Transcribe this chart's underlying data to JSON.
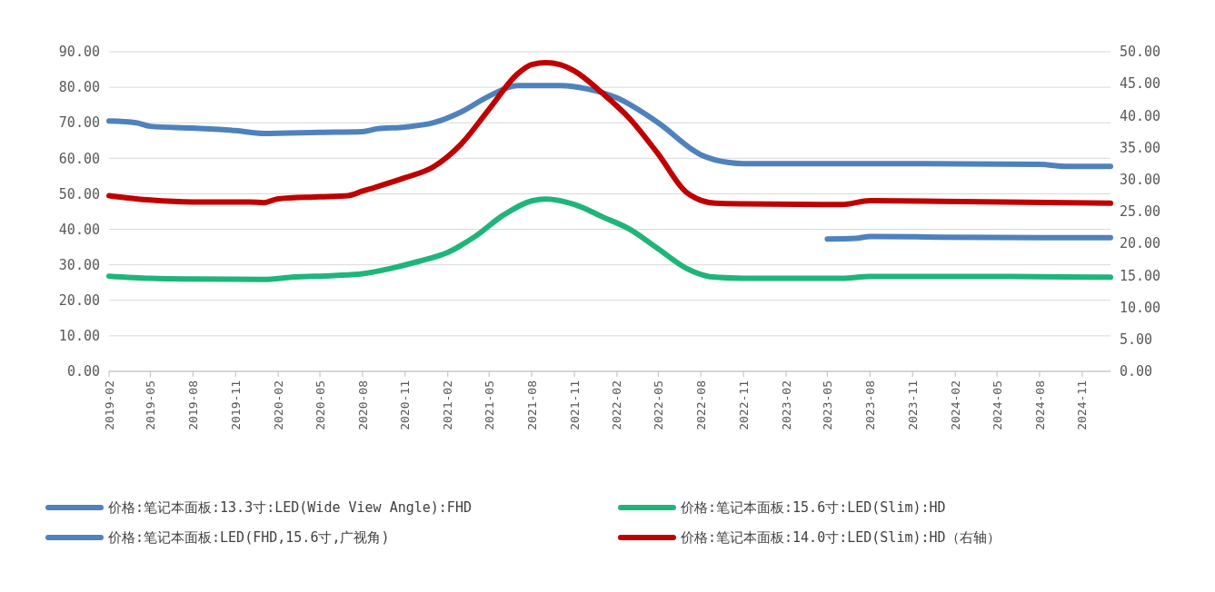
{
  "chart_data": {
    "type": "line",
    "xlim": [
      "2019-02",
      "2025-01"
    ],
    "xticks": [
      "2019-02",
      "2019-05",
      "2019-08",
      "2019-11",
      "2020-02",
      "2020-05",
      "2020-08",
      "2020-11",
      "2021-02",
      "2021-05",
      "2021-08",
      "2021-11",
      "2022-02",
      "2022-05",
      "2022-08",
      "2022-11",
      "2023-02",
      "2023-05",
      "2023-08",
      "2023-11",
      "2024-02",
      "2024-05",
      "2024-08",
      "2024-11"
    ],
    "ylim": [
      0,
      90
    ],
    "yticks": [
      {
        "value": 0,
        "label": "0.00"
      },
      {
        "value": 10,
        "label": "10.00"
      },
      {
        "value": 20,
        "label": "20.00"
      },
      {
        "value": 30,
        "label": "30.00"
      },
      {
        "value": 40,
        "label": "40.00"
      },
      {
        "value": 50,
        "label": "50.00"
      },
      {
        "value": 60,
        "label": "60.00"
      },
      {
        "value": 70,
        "label": "70.00"
      },
      {
        "value": 80,
        "label": "80.00"
      },
      {
        "value": 90,
        "label": "90.00"
      }
    ],
    "y2lim": [
      0,
      50
    ],
    "y2ticks": [
      {
        "value": 0,
        "label": "0.00"
      },
      {
        "value": 5,
        "label": "5.00"
      },
      {
        "value": 10,
        "label": "10.00"
      },
      {
        "value": 15,
        "label": "15.00"
      },
      {
        "value": 20,
        "label": "20.00"
      },
      {
        "value": 25,
        "label": "25.00"
      },
      {
        "value": 30,
        "label": "30.00"
      },
      {
        "value": 35,
        "label": "35.00"
      },
      {
        "value": 40,
        "label": "40.00"
      },
      {
        "value": 45,
        "label": "45.00"
      },
      {
        "value": 50,
        "label": "50.00"
      }
    ],
    "grid": "y",
    "legend": "bottom",
    "marker": "none",
    "line_style": "solid",
    "series": [
      {
        "name": "价格:笔记本面板:13.3寸:LED(Wide View Angle):FHD",
        "color": "#4f81bd",
        "x": [
          "2019-02",
          "2019-04",
          "2019-05",
          "2019-08",
          "2019-11",
          "2020-01",
          "2020-05",
          "2020-08",
          "2020-09",
          "2020-11",
          "2021-01",
          "2021-03",
          "2021-05",
          "2021-07",
          "2021-08",
          "2021-10",
          "2021-12",
          "2022-02",
          "2022-05",
          "2022-08",
          "2022-10",
          "2022-11",
          "2023-08",
          "2023-11",
          "2024-08",
          "2024-10",
          "2025-01"
        ],
        "values": [
          70.5,
          70,
          69,
          68.5,
          67.8,
          67,
          67.3,
          67.5,
          68.3,
          68.8,
          70,
          73,
          77.5,
          80.5,
          80.5,
          80.5,
          79.5,
          77,
          70,
          61,
          58.8,
          58.5,
          58.5,
          58.5,
          58.3,
          57.7,
          57.7
        ]
      },
      {
        "name": "价格:笔记本面板:15.6寸:LED(Slim):HD",
        "color": "#1fb57a",
        "x": [
          "2019-02",
          "2019-05",
          "2019-08",
          "2020-01",
          "2020-03",
          "2020-06",
          "2020-08",
          "2020-10",
          "2020-12",
          "2021-02",
          "2021-04",
          "2021-06",
          "2021-08",
          "2021-09",
          "2021-11",
          "2022-01",
          "2022-03",
          "2022-05",
          "2022-07",
          "2022-09",
          "2022-11",
          "2023-06",
          "2023-08",
          "2024-06",
          "2025-01"
        ],
        "values": [
          26.8,
          26.2,
          26,
          25.9,
          26.5,
          27,
          27.5,
          29,
          31,
          33.5,
          38,
          44,
          48,
          48.5,
          47,
          43.5,
          40,
          34.5,
          29,
          26.5,
          26.2,
          26.2,
          26.7,
          26.7,
          26.5
        ]
      },
      {
        "name": "价格:笔记本面板:LED(FHD,15.6寸,广视角)",
        "color": "#4f81bd",
        "axis": "y2",
        "x": [
          "2023-05",
          "2023-07",
          "2023-08",
          "2024-01",
          "2025-01"
        ],
        "values": [
          20.7,
          20.8,
          21.1,
          21,
          20.9
        ]
      },
      {
        "name": "价格:笔记本面板:14.0寸:LED(Slim):HD（右轴）",
        "color": "#c00000",
        "axis": "y2",
        "x": [
          "2019-02",
          "2019-05",
          "2019-08",
          "2019-12",
          "2020-01",
          "2020-02",
          "2020-05",
          "2020-07",
          "2020-08",
          "2020-11",
          "2021-01",
          "2021-03",
          "2021-05",
          "2021-07",
          "2021-08",
          "2021-09",
          "2021-10",
          "2021-11",
          "2022-01",
          "2022-03",
          "2022-05",
          "2022-07",
          "2022-09",
          "2022-11",
          "2023-06",
          "2023-08",
          "2024-01",
          "2025-01"
        ],
        "values": [
          27.5,
          26.8,
          26.5,
          26.5,
          26.4,
          27,
          27.3,
          27.5,
          28.2,
          30.3,
          32,
          35.5,
          41,
          46.5,
          48,
          48.3,
          48,
          47,
          43.5,
          39.5,
          34,
          28,
          26.3,
          26.2,
          26.1,
          26.7,
          26.6,
          26.3
        ]
      }
    ]
  }
}
